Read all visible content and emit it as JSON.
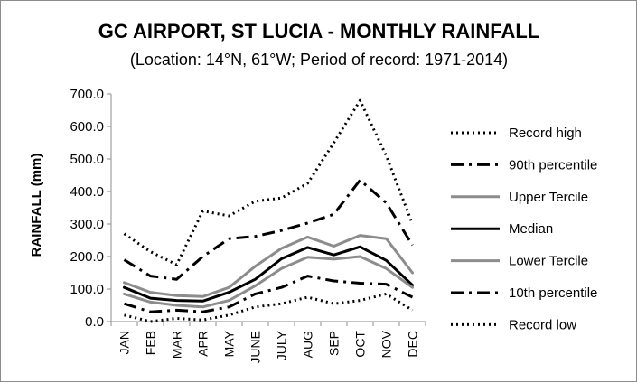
{
  "chart_data": {
    "type": "line",
    "title": "GC AIRPORT, ST LUCIA - MONTHLY RAINFALL",
    "subtitle": "(Location: 14°N, 61°W; Period of record: 1971-2014)",
    "ylabel": "RAINFALL (mm)",
    "xlabel": "",
    "ylim": [
      0,
      700
    ],
    "yticks": [
      "0.0",
      "100.0",
      "200.0",
      "300.0",
      "400.0",
      "500.0",
      "600.0",
      "700.0"
    ],
    "categories": [
      "JAN",
      "FEB",
      "MAR",
      "APR",
      "MAY",
      "JUNE",
      "JULY",
      "AUG",
      "SEP",
      "OCT",
      "NOV",
      "DEC"
    ],
    "grid": false,
    "legend": "right",
    "series": [
      {
        "name": "Record high",
        "values": [
          270,
          215,
          175,
          340,
          325,
          370,
          380,
          425,
          550,
          680,
          510,
          300
        ]
      },
      {
        "name": "90th percentile",
        "values": [
          190,
          140,
          130,
          200,
          255,
          262,
          280,
          303,
          330,
          435,
          365,
          235
        ]
      },
      {
        "name": "Upper Tercile",
        "values": [
          120,
          90,
          80,
          77,
          105,
          170,
          225,
          260,
          232,
          265,
          255,
          150
        ]
      },
      {
        "name": "Median",
        "values": [
          105,
          72,
          65,
          63,
          90,
          130,
          193,
          228,
          205,
          230,
          188,
          112
        ]
      },
      {
        "name": "Lower Tercile",
        "values": [
          85,
          60,
          50,
          45,
          65,
          110,
          163,
          198,
          192,
          200,
          163,
          105
        ]
      },
      {
        "name": "10th percentile",
        "values": [
          55,
          30,
          35,
          30,
          45,
          85,
          105,
          140,
          125,
          118,
          115,
          75
        ]
      },
      {
        "name": "Record low",
        "values": [
          20,
          0,
          10,
          5,
          20,
          45,
          55,
          75,
          55,
          65,
          85,
          35
        ]
      }
    ]
  }
}
